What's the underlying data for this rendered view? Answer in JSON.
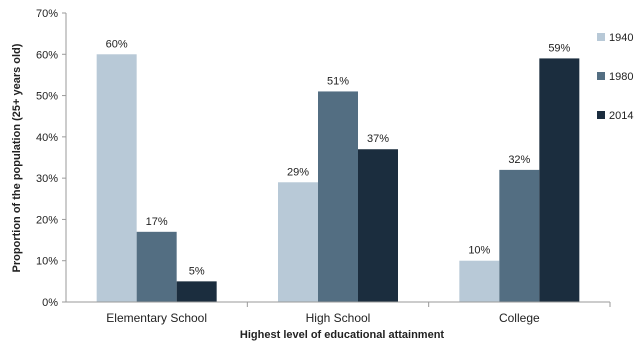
{
  "chart_data": {
    "type": "bar",
    "categories": [
      "Elementary School",
      "High School",
      "College"
    ],
    "series": [
      {
        "name": "1940",
        "color": "#b8c9d7",
        "values": [
          60,
          29,
          10
        ],
        "labels": [
          "60%",
          "29%",
          "10%"
        ]
      },
      {
        "name": "1980",
        "color": "#536e82",
        "values": [
          17,
          51,
          32
        ],
        "labels": [
          "17%",
          "51%",
          "32%"
        ]
      },
      {
        "name": "2014",
        "color": "#1b2d3e",
        "values": [
          5,
          37,
          59
        ],
        "labels": [
          "5%",
          "37%",
          "59%"
        ]
      }
    ],
    "ylim": [
      0,
      70
    ],
    "yticks": [
      "0%",
      "10%",
      "20%",
      "30%",
      "40%",
      "50%",
      "60%",
      "70%"
    ],
    "xlabel": "Highest level of educational attainment",
    "ylabel": "Proportion of the population (25+ years old)",
    "legend_position": "right",
    "grid": false
  }
}
